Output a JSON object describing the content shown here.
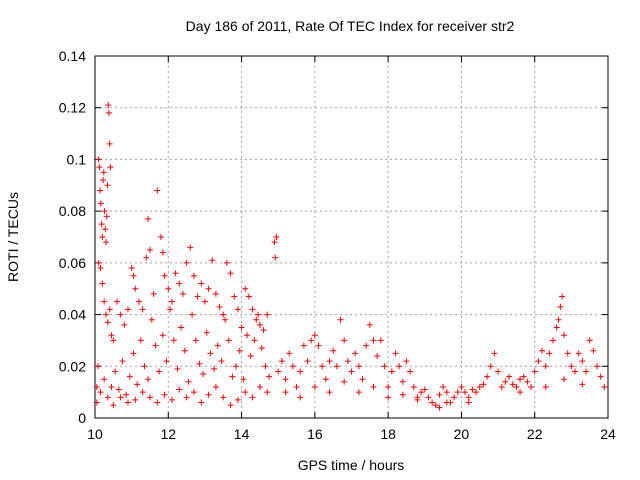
{
  "chart_data": {
    "type": "scatter",
    "title": "Day 186 of 2011, Rate Of TEC Index for receiver str2",
    "xlabel": "GPS time / hours",
    "ylabel": "ROTI / TECUs",
    "xlim": [
      10,
      24
    ],
    "ylim": [
      0,
      0.14
    ],
    "xticks": [
      10,
      12,
      14,
      16,
      18,
      20,
      22,
      24
    ],
    "yticks": [
      0,
      0.02,
      0.04,
      0.06,
      0.08,
      0.1,
      0.12,
      0.14
    ],
    "xtick_labels": [
      "10",
      "12",
      "14",
      "16",
      "18",
      "20",
      "22",
      "24"
    ],
    "ytick_labels": [
      "0",
      "0.02",
      "0.04",
      "0.06",
      "0.08",
      "0.1",
      "0.12",
      "0.14"
    ],
    "grid": true,
    "marker": "+",
    "color": "#ff0000",
    "series": [
      {
        "name": "str2",
        "points": [
          [
            10.05,
            0.012
          ],
          [
            10.08,
            0.02
          ],
          [
            10.1,
            0.1
          ],
          [
            10.12,
            0.097
          ],
          [
            10.14,
            0.088
          ],
          [
            10.16,
            0.083
          ],
          [
            10.18,
            0.075
          ],
          [
            10.2,
            0.07
          ],
          [
            10.22,
            0.092
          ],
          [
            10.24,
            0.095
          ],
          [
            10.26,
            0.08
          ],
          [
            10.28,
            0.073
          ],
          [
            10.3,
            0.068
          ],
          [
            10.32,
            0.078
          ],
          [
            10.34,
            0.09
          ],
          [
            10.36,
            0.121
          ],
          [
            10.38,
            0.118
          ],
          [
            10.4,
            0.106
          ],
          [
            10.42,
            0.097
          ],
          [
            10.1,
            0.06
          ],
          [
            10.15,
            0.058
          ],
          [
            10.2,
            0.052
          ],
          [
            10.25,
            0.045
          ],
          [
            10.3,
            0.04
          ],
          [
            10.35,
            0.037
          ],
          [
            10.4,
            0.042
          ],
          [
            10.45,
            0.032
          ],
          [
            10.5,
            0.03
          ],
          [
            10.05,
            0.006
          ],
          [
            10.15,
            0.01
          ],
          [
            10.25,
            0.015
          ],
          [
            10.35,
            0.008
          ],
          [
            10.45,
            0.012
          ],
          [
            10.55,
            0.018
          ],
          [
            10.65,
            0.011
          ],
          [
            10.75,
            0.022
          ],
          [
            10.85,
            0.009
          ],
          [
            10.95,
            0.016
          ],
          [
            11.05,
            0.025
          ],
          [
            11.15,
            0.013
          ],
          [
            11.25,
            0.03
          ],
          [
            11.35,
            0.02
          ],
          [
            11.45,
            0.015
          ],
          [
            11.55,
            0.038
          ],
          [
            11.65,
            0.028
          ],
          [
            11.75,
            0.018
          ],
          [
            11.85,
            0.032
          ],
          [
            11.95,
            0.022
          ],
          [
            12.05,
            0.042
          ],
          [
            12.15,
            0.03
          ],
          [
            12.25,
            0.019
          ],
          [
            12.35,
            0.035
          ],
          [
            12.45,
            0.026
          ],
          [
            12.55,
            0.014
          ],
          [
            12.65,
            0.04
          ],
          [
            12.75,
            0.03
          ],
          [
            12.85,
            0.021
          ],
          [
            12.95,
            0.017
          ],
          [
            13.05,
            0.033
          ],
          [
            13.15,
            0.025
          ],
          [
            13.25,
            0.019
          ],
          [
            13.35,
            0.028
          ],
          [
            13.45,
            0.022
          ],
          [
            13.55,
            0.038
          ],
          [
            13.65,
            0.03
          ],
          [
            13.75,
            0.016
          ],
          [
            13.85,
            0.02
          ],
          [
            13.95,
            0.026
          ],
          [
            14.05,
            0.015
          ],
          [
            14.15,
            0.032
          ],
          [
            14.25,
            0.024
          ],
          [
            14.35,
            0.03
          ],
          [
            14.45,
            0.04
          ],
          [
            14.55,
            0.027
          ],
          [
            14.65,
            0.02
          ],
          [
            14.75,
            0.016
          ],
          [
            10.6,
            0.045
          ],
          [
            10.7,
            0.04
          ],
          [
            10.8,
            0.036
          ],
          [
            10.9,
            0.042
          ],
          [
            11.0,
            0.058
          ],
          [
            11.05,
            0.055
          ],
          [
            11.1,
            0.05
          ],
          [
            11.2,
            0.045
          ],
          [
            11.3,
            0.042
          ],
          [
            11.4,
            0.062
          ],
          [
            11.45,
            0.077
          ],
          [
            11.5,
            0.065
          ],
          [
            11.6,
            0.048
          ],
          [
            11.7,
            0.088
          ],
          [
            11.8,
            0.07
          ],
          [
            11.85,
            0.064
          ],
          [
            11.9,
            0.055
          ],
          [
            12.0,
            0.05
          ],
          [
            12.1,
            0.045
          ],
          [
            12.2,
            0.056
          ],
          [
            12.3,
            0.052
          ],
          [
            12.4,
            0.048
          ],
          [
            12.5,
            0.06
          ],
          [
            12.6,
            0.066
          ],
          [
            12.7,
            0.055
          ],
          [
            12.8,
            0.047
          ],
          [
            12.9,
            0.052
          ],
          [
            13.0,
            0.045
          ],
          [
            13.1,
            0.05
          ],
          [
            13.2,
            0.061
          ],
          [
            13.3,
            0.048
          ],
          [
            13.4,
            0.043
          ],
          [
            13.5,
            0.04
          ],
          [
            13.6,
            0.06
          ],
          [
            13.7,
            0.056
          ],
          [
            13.8,
            0.047
          ],
          [
            13.9,
            0.042
          ],
          [
            14.0,
            0.035
          ],
          [
            14.1,
            0.05
          ],
          [
            14.2,
            0.047
          ],
          [
            14.3,
            0.042
          ],
          [
            14.4,
            0.038
          ],
          [
            14.5,
            0.036
          ],
          [
            14.6,
            0.034
          ],
          [
            14.7,
            0.04
          ],
          [
            14.9,
            0.068
          ],
          [
            14.95,
            0.07
          ],
          [
            14.92,
            0.062
          ],
          [
            10.5,
            0.005
          ],
          [
            10.7,
            0.008
          ],
          [
            10.9,
            0.006
          ],
          [
            11.1,
            0.007
          ],
          [
            11.3,
            0.01
          ],
          [
            11.5,
            0.008
          ],
          [
            11.7,
            0.006
          ],
          [
            11.9,
            0.009
          ],
          [
            12.1,
            0.007
          ],
          [
            12.3,
            0.011
          ],
          [
            12.5,
            0.008
          ],
          [
            12.7,
            0.01
          ],
          [
            12.9,
            0.006
          ],
          [
            13.1,
            0.009
          ],
          [
            13.3,
            0.012
          ],
          [
            13.5,
            0.008
          ],
          [
            13.7,
            0.005
          ],
          [
            13.9,
            0.007
          ],
          [
            14.1,
            0.01
          ],
          [
            14.3,
            0.008
          ],
          [
            14.5,
            0.012
          ],
          [
            14.7,
            0.01
          ],
          [
            15.0,
            0.018
          ],
          [
            15.1,
            0.022
          ],
          [
            15.2,
            0.015
          ],
          [
            15.3,
            0.025
          ],
          [
            15.4,
            0.02
          ],
          [
            15.5,
            0.012
          ],
          [
            15.6,
            0.018
          ],
          [
            15.7,
            0.028
          ],
          [
            15.8,
            0.022
          ],
          [
            15.9,
            0.03
          ],
          [
            16.0,
            0.032
          ],
          [
            16.1,
            0.028
          ],
          [
            16.2,
            0.02
          ],
          [
            16.3,
            0.015
          ],
          [
            16.4,
            0.022
          ],
          [
            16.5,
            0.026
          ],
          [
            16.6,
            0.02
          ],
          [
            16.7,
            0.038
          ],
          [
            16.8,
            0.03
          ],
          [
            16.9,
            0.022
          ],
          [
            17.0,
            0.018
          ],
          [
            17.1,
            0.025
          ],
          [
            17.2,
            0.02
          ],
          [
            17.3,
            0.015
          ],
          [
            17.4,
            0.028
          ],
          [
            17.5,
            0.036
          ],
          [
            17.6,
            0.03
          ],
          [
            17.7,
            0.024
          ],
          [
            17.8,
            0.03
          ],
          [
            17.9,
            0.02
          ],
          [
            18.0,
            0.012
          ],
          [
            18.1,
            0.018
          ],
          [
            18.2,
            0.025
          ],
          [
            18.3,
            0.02
          ],
          [
            18.4,
            0.014
          ],
          [
            18.5,
            0.022
          ],
          [
            18.6,
            0.018
          ],
          [
            18.7,
            0.012
          ],
          [
            18.8,
            0.008
          ],
          [
            18.9,
            0.01
          ],
          [
            19.0,
            0.011
          ],
          [
            19.1,
            0.008
          ],
          [
            19.2,
            0.006
          ],
          [
            19.3,
            0.005
          ],
          [
            19.4,
            0.009
          ],
          [
            19.5,
            0.012
          ],
          [
            19.6,
            0.01
          ],
          [
            19.7,
            0.006
          ],
          [
            19.8,
            0.008
          ],
          [
            19.9,
            0.01
          ],
          [
            20.0,
            0.012
          ],
          [
            20.1,
            0.01
          ],
          [
            20.2,
            0.008
          ],
          [
            20.3,
            0.011
          ],
          [
            20.4,
            0.01
          ],
          [
            20.5,
            0.012
          ],
          [
            20.6,
            0.013
          ],
          [
            20.7,
            0.016
          ],
          [
            20.8,
            0.02
          ],
          [
            20.9,
            0.025
          ],
          [
            21.0,
            0.018
          ],
          [
            21.1,
            0.012
          ],
          [
            21.2,
            0.014
          ],
          [
            21.3,
            0.016
          ],
          [
            21.4,
            0.013
          ],
          [
            21.5,
            0.012
          ],
          [
            21.6,
            0.015
          ],
          [
            21.7,
            0.016
          ],
          [
            21.8,
            0.014
          ],
          [
            21.9,
            0.012
          ],
          [
            22.0,
            0.018
          ],
          [
            22.1,
            0.022
          ],
          [
            22.2,
            0.026
          ],
          [
            22.3,
            0.02
          ],
          [
            22.4,
            0.025
          ],
          [
            22.5,
            0.03
          ],
          [
            22.6,
            0.035
          ],
          [
            22.65,
            0.038
          ],
          [
            22.7,
            0.043
          ],
          [
            22.75,
            0.047
          ],
          [
            22.8,
            0.032
          ],
          [
            22.9,
            0.025
          ],
          [
            23.0,
            0.02
          ],
          [
            23.1,
            0.018
          ],
          [
            23.2,
            0.025
          ],
          [
            23.3,
            0.022
          ],
          [
            23.4,
            0.018
          ],
          [
            23.5,
            0.03
          ],
          [
            23.6,
            0.026
          ],
          [
            23.7,
            0.02
          ],
          [
            23.8,
            0.016
          ],
          [
            15.2,
            0.01
          ],
          [
            15.6,
            0.008
          ],
          [
            16.0,
            0.012
          ],
          [
            16.4,
            0.01
          ],
          [
            16.8,
            0.014
          ],
          [
            17.2,
            0.01
          ],
          [
            17.6,
            0.012
          ],
          [
            18.0,
            0.008
          ],
          [
            18.4,
            0.009
          ],
          [
            18.8,
            0.007
          ],
          [
            19.4,
            0.004
          ],
          [
            19.6,
            0.006
          ],
          [
            20.2,
            0.006
          ],
          [
            21.6,
            0.01
          ],
          [
            22.3,
            0.012
          ],
          [
            22.8,
            0.015
          ],
          [
            23.3,
            0.013
          ],
          [
            23.9,
            0.012
          ]
        ]
      }
    ]
  }
}
